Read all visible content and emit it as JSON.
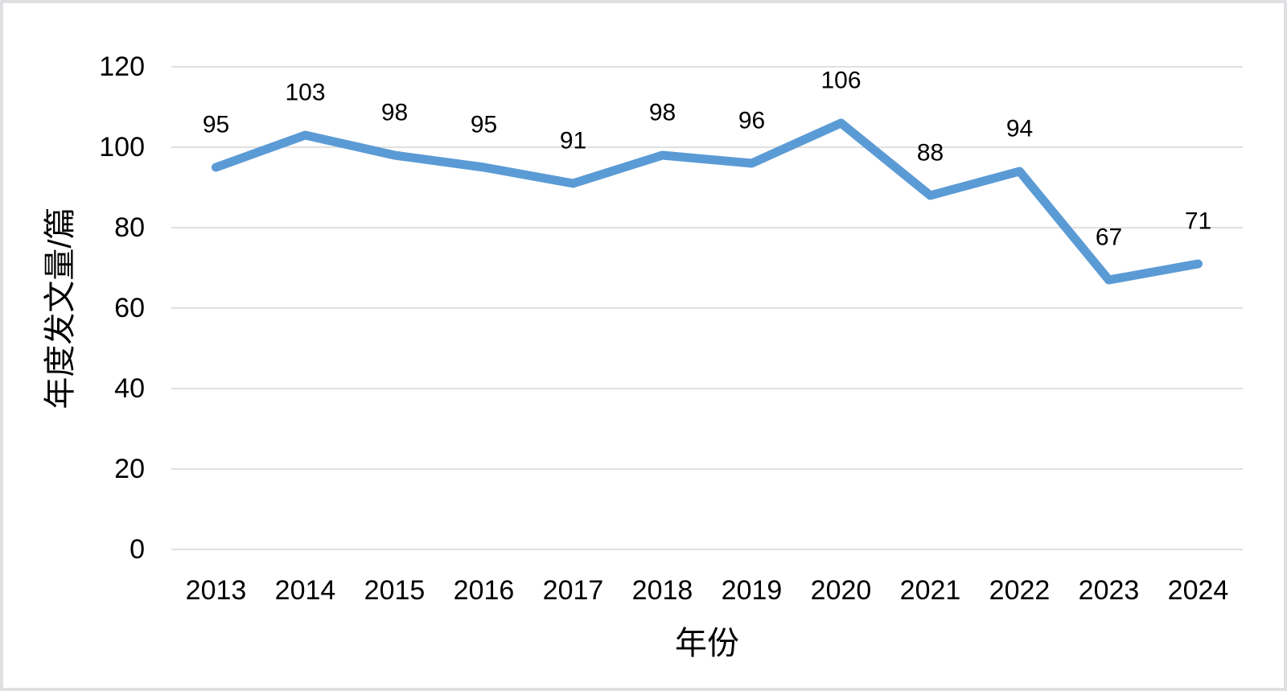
{
  "chart_data": {
    "type": "line",
    "title": "",
    "categories": [
      "2013",
      "2014",
      "2015",
      "2016",
      "2017",
      "2018",
      "2019",
      "2020",
      "2021",
      "2022",
      "2023",
      "2024"
    ],
    "values": [
      95,
      103,
      98,
      95,
      91,
      98,
      96,
      106,
      88,
      94,
      67,
      71
    ],
    "data_labels": [
      "95",
      "103",
      "98",
      "95",
      "91",
      "98",
      "96",
      "106",
      "88",
      "94",
      "67",
      "71"
    ],
    "xlabel": "年份",
    "ylabel": "年度发文量/篇",
    "ylim": [
      0,
      120
    ],
    "ytick_step": 20,
    "ytick_labels": [
      "0",
      "20",
      "40",
      "60",
      "80",
      "100",
      "120"
    ],
    "grid": true,
    "legend": "none",
    "colors": {
      "line": "#5B9BD5",
      "gridline": "#E0E0E0",
      "text": "#000000",
      "background": "#FFFFFF",
      "frame_border": "#E0E0E4"
    }
  }
}
